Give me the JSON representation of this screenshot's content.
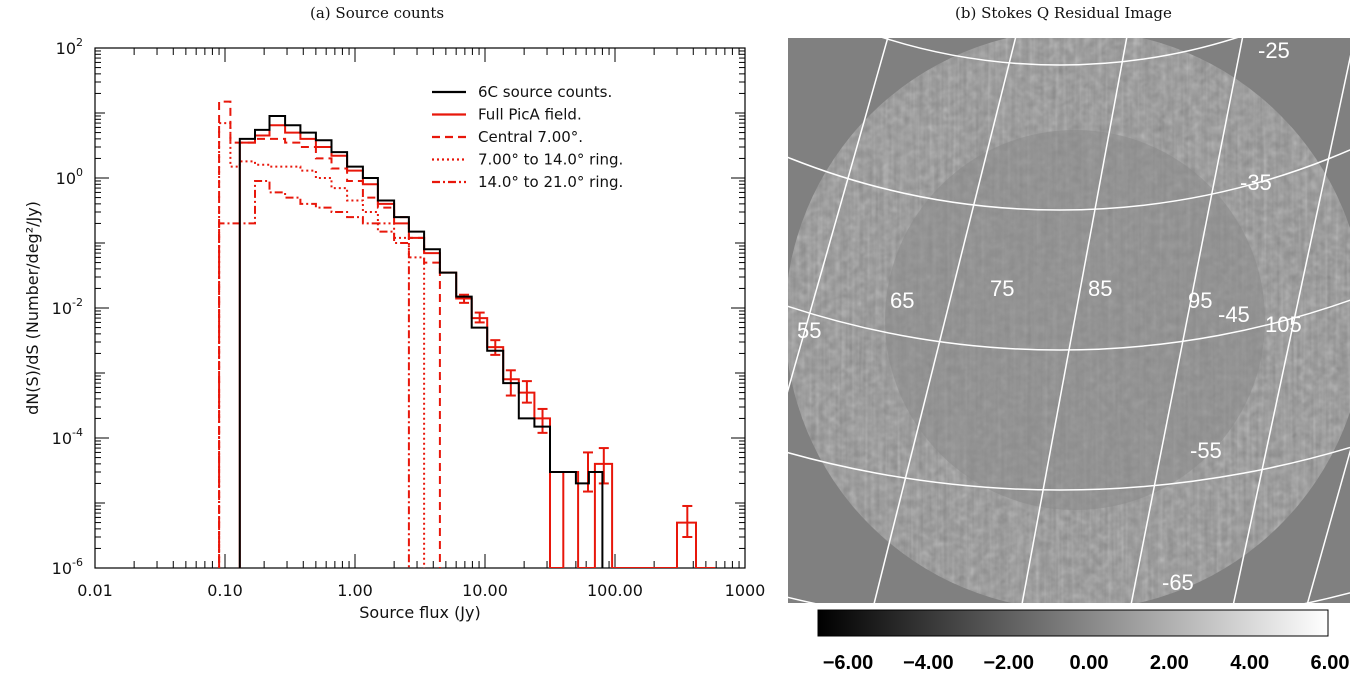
{
  "panel_a": {
    "caption": "(a) Source counts"
  },
  "panel_b": {
    "caption": "(b) Stokes Q Residual Image",
    "grid_labels_ra": [
      "55",
      "65",
      "75",
      "85",
      "95",
      "105"
    ],
    "grid_labels_dec": [
      "-25",
      "-35",
      "-45",
      "-55",
      "-65"
    ],
    "colorbar_ticks": [
      "-6.00",
      "-4.00",
      "-2.00",
      "0.00",
      "2.00",
      "4.00",
      "6.00"
    ],
    "colorbar_range": [
      -6,
      6
    ],
    "background_color": "#808080"
  },
  "chart_data": [
    {
      "type": "line",
      "title": "(a) Source counts",
      "xlabel": "Source flux (Jy)",
      "ylabel": "dN(S)/dS (Number/deg²/Jy)",
      "xscale": "log",
      "yscale": "log",
      "xlim": [
        0.01,
        1000
      ],
      "ylim": [
        1e-06,
        100
      ],
      "x_tick_labels": [
        "0.01",
        "0.10",
        "1.00",
        "10.00",
        "100.00",
        "1000"
      ],
      "y_tick_labels": [
        {
          "base": "10",
          "exp": "-6"
        },
        {
          "base": "10",
          "exp": "-4"
        },
        {
          "base": "10",
          "exp": "-2"
        },
        {
          "base": "10",
          "exp": "0"
        },
        {
          "base": "10",
          "exp": "2"
        }
      ],
      "legend_position": "top-right",
      "series": [
        {
          "name": "6C source counts.",
          "color": "#000000",
          "dash": "solid",
          "edges": [
            0.13,
            0.17,
            0.22,
            0.29,
            0.38,
            0.5,
            0.66,
            0.87,
            1.15,
            1.5,
            2.0,
            2.6,
            3.4,
            4.5,
            6.0,
            7.9,
            10.4,
            13.8,
            18.2,
            24.0,
            31.6,
            50,
            63,
            80
          ],
          "values": [
            4.0,
            5.5,
            9.0,
            6.5,
            5.0,
            3.8,
            2.5,
            1.5,
            1.0,
            0.45,
            0.25,
            0.15,
            0.08,
            0.035,
            0.015,
            0.005,
            0.0022,
            0.0007,
            0.0002,
            0.00015,
            3e-05,
            2e-05,
            3e-05
          ]
        },
        {
          "name": "Full PicA field.",
          "color": "#e8170b",
          "dash": "solid",
          "edges": [
            0.13,
            0.17,
            0.22,
            0.29,
            0.38,
            0.5,
            0.66,
            0.87,
            1.15,
            1.5,
            2.0,
            2.6,
            3.4,
            4.5,
            6.0,
            7.9,
            10.4,
            13.8,
            18.2,
            24.0,
            31.6,
            40,
            52,
            70,
            95,
            120,
            300,
            420,
            580
          ],
          "values": [
            3.5,
            4.5,
            6.5,
            5.0,
            4.0,
            3.0,
            2.2,
            1.3,
            0.8,
            0.4,
            0.2,
            0.12,
            0.07,
            0.035,
            0.014,
            0.007,
            0.0025,
            0.0008,
            0.0005,
            0.0002,
            1e-06,
            3e-05,
            1e-06,
            4e-05,
            1e-06,
            1e-06,
            5e-06,
            1e-06
          ],
          "error_bars": [
            {
              "x": 6.9,
              "y": 0.014,
              "lo": 0.012,
              "hi": 0.016
            },
            {
              "x": 9.1,
              "y": 0.007,
              "lo": 0.006,
              "hi": 0.0085
            },
            {
              "x": 12.0,
              "y": 0.0025,
              "lo": 0.0019,
              "hi": 0.0032
            },
            {
              "x": 15.8,
              "y": 0.0008,
              "lo": 0.00045,
              "hi": 0.0011
            },
            {
              "x": 21.0,
              "y": 0.0005,
              "lo": 0.00035,
              "hi": 0.00075
            },
            {
              "x": 27.7,
              "y": 0.0002,
              "lo": 0.00012,
              "hi": 0.00028
            },
            {
              "x": 62.0,
              "y": 4e-05,
              "lo": 1.5e-05,
              "hi": 6e-05
            },
            {
              "x": 82.0,
              "y": 4e-05,
              "lo": 2e-05,
              "hi": 7e-05
            },
            {
              "x": 360,
              "y": 5e-06,
              "lo": 3e-06,
              "hi": 9e-06
            }
          ]
        },
        {
          "name": "Central 7.00°.",
          "color": "#e8170b",
          "dash": "8,5",
          "edges": [
            0.09,
            0.11,
            0.13,
            0.17,
            0.22,
            0.29,
            0.38,
            0.5,
            0.66,
            0.87,
            1.15,
            1.5,
            2.0,
            2.6,
            3.4,
            4.5
          ],
          "values": [
            15.0,
            3.5,
            3.5,
            4.0,
            4.0,
            3.5,
            3.0,
            2.0,
            1.4,
            0.9,
            0.5,
            0.35,
            0.25,
            0.12,
            0.05
          ]
        },
        {
          "name": "7.00° to 14.0° ring.",
          "color": "#e8170b",
          "dash": "2,3",
          "edges": [
            0.09,
            0.11,
            0.13,
            0.17,
            0.22,
            0.29,
            0.38,
            0.5,
            0.66,
            0.87,
            1.15,
            1.5,
            2.0,
            2.6,
            3.4
          ],
          "values": [
            7.0,
            1.5,
            1.8,
            1.6,
            1.5,
            1.5,
            1.3,
            1.0,
            0.7,
            0.45,
            0.3,
            0.2,
            0.12,
            0.06
          ]
        },
        {
          "name": "14.0° to 21.0° ring.",
          "color": "#e8170b",
          "dash": "8,3,2,3",
          "edges": [
            0.09,
            0.11,
            0.13,
            0.17,
            0.22,
            0.29,
            0.38,
            0.5,
            0.66,
            0.87,
            1.15,
            1.5,
            2.0,
            2.6
          ],
          "values": [
            0.2,
            0.2,
            0.2,
            0.9,
            0.6,
            0.5,
            0.4,
            0.35,
            0.3,
            0.25,
            0.2,
            0.15,
            0.1
          ]
        }
      ]
    }
  ]
}
